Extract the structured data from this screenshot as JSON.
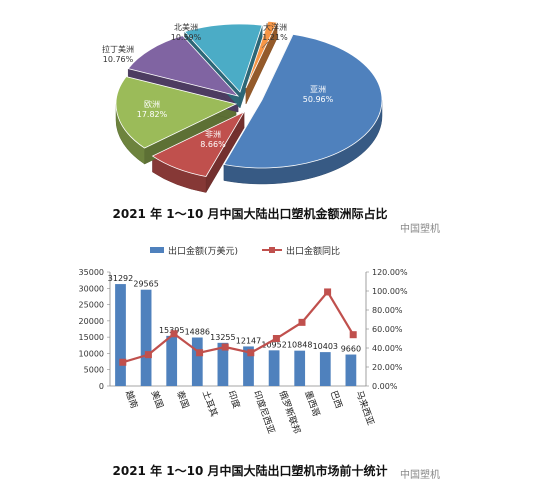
{
  "chart_data": [
    {
      "type": "pie",
      "title": "2021 年 1～10 月中国大陆出口塑机金额洲际占比",
      "slices": [
        {
          "label": "亚洲",
          "pct_label": "50.96%",
          "value": 50.96,
          "color": "#4f81bd"
        },
        {
          "label": "非洲",
          "pct_label": "8.66%",
          "value": 8.66,
          "color": "#c0504d"
        },
        {
          "label": "欧洲",
          "pct_label": "17.82%",
          "value": 17.82,
          "color": "#9bbb59"
        },
        {
          "label": "拉丁美洲",
          "pct_label": "10.76%",
          "value": 10.76,
          "color": "#8064a2"
        },
        {
          "label": "北美洲",
          "pct_label": "10.59%",
          "value": 10.59,
          "color": "#4bacc6"
        },
        {
          "label": "大洋洲",
          "pct_label": "1.21%",
          "value": 1.21,
          "color": "#f79646"
        }
      ]
    },
    {
      "type": "bar",
      "title": "2021 年 1～10 月中国大陆出口塑机市场前十统计",
      "categories": [
        "越南",
        "美国",
        "泰国",
        "土耳其",
        "印度",
        "印度尼西亚",
        "俄罗斯联邦",
        "墨西哥",
        "巴西",
        "马来西亚"
      ],
      "series": [
        {
          "name": "出口金额(万美元)",
          "values": [
            31292,
            29565,
            15395,
            14886,
            13255,
            12147,
            10952,
            10848,
            10403,
            9660
          ],
          "labels": [
            "31292",
            "29565",
            "15395",
            "14886",
            "13255",
            "12147",
            "10952",
            "10848",
            "10403",
            "9660"
          ],
          "color": "#4f81bd"
        },
        {
          "name": "出口金额同比",
          "values": [
            25,
            33,
            55,
            35,
            41,
            35,
            50,
            67,
            99,
            54
          ],
          "color": "#c0504d"
        }
      ],
      "ylim": [
        0,
        35000
      ],
      "yticks": [
        "0",
        "5000",
        "10000",
        "15000",
        "20000",
        "25000",
        "30000",
        "35000"
      ],
      "y2lim": [
        0,
        120
      ],
      "y2ticks": [
        "0.00%",
        "20.00%",
        "40.00%",
        "60.00%",
        "80.00%",
        "100.00%",
        "120.00%"
      ],
      "legend": "top"
    }
  ],
  "watermark": "中国塑机"
}
